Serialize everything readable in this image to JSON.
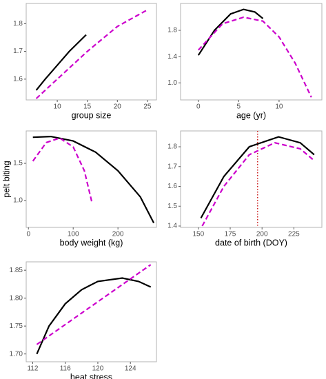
{
  "chart_data": [
    {
      "type": "line",
      "xlabel": "group size",
      "xlim": [
        4.83,
        26.5
      ],
      "ylim": [
        1.525,
        1.873
      ],
      "xticks": [
        10,
        15,
        20,
        25
      ],
      "yticks": [
        1.6,
        1.7,
        1.8
      ],
      "series": [
        {
          "color": "#000000",
          "dash": false,
          "x": [
            6.5,
            8,
            10,
            12,
            14.8
          ],
          "values": [
            1.56,
            1.6,
            1.65,
            1.7,
            1.76
          ]
        },
        {
          "color": "#cc00cc",
          "dash": true,
          "x": [
            6.5,
            10,
            15,
            20,
            25
          ],
          "values": [
            1.53,
            1.6,
            1.7,
            1.79,
            1.85
          ]
        }
      ]
    },
    {
      "type": "line",
      "xlabel": "age (yr)",
      "xlim": [
        -2.2,
        15.3
      ],
      "ylim": [
        0.74,
        2.21
      ],
      "xticks": [
        0,
        5,
        10
      ],
      "yticks": [
        {
          "value": 1.0,
          "label": "1.0"
        },
        1.4,
        1.8
      ],
      "series": [
        {
          "color": "#000000",
          "dash": false,
          "x": [
            0,
            2,
            4,
            5.6,
            7,
            8
          ],
          "values": [
            1.42,
            1.8,
            2.05,
            2.12,
            2.08,
            1.98
          ]
        },
        {
          "color": "#cc00cc",
          "dash": true,
          "x": [
            0,
            3,
            5.6,
            8,
            10,
            12,
            14
          ],
          "values": [
            1.5,
            1.9,
            2.0,
            1.94,
            1.7,
            1.3,
            0.78
          ]
        }
      ]
    },
    {
      "type": "line",
      "xlabel": "body weight (kg)",
      "ylabel": "pelt biting",
      "xlim": [
        -5,
        286
      ],
      "ylim": [
        0.64,
        1.935
      ],
      "xticks": [
        0,
        100,
        200
      ],
      "yticks": [
        {
          "value": 1.0,
          "label": "1.0"
        },
        1.5
      ],
      "series": [
        {
          "color": "#000000",
          "dash": false,
          "x": [
            10,
            50,
            100,
            150,
            200,
            250,
            280
          ],
          "values": [
            1.85,
            1.86,
            1.8,
            1.65,
            1.4,
            1.05,
            0.7
          ]
        },
        {
          "color": "#cc00cc",
          "dash": true,
          "x": [
            10,
            40,
            70,
            100,
            125,
            142
          ],
          "values": [
            1.53,
            1.78,
            1.84,
            1.72,
            1.4,
            0.97
          ]
        }
      ]
    },
    {
      "type": "line",
      "xlabel": "date of birth (DOY)",
      "xlim": [
        136,
        247
      ],
      "ylim": [
        1.393,
        1.88
      ],
      "xticks": [
        150,
        175,
        200,
        225
      ],
      "yticks": [
        1.4,
        1.5,
        1.6,
        1.7,
        1.8
      ],
      "vline": {
        "x": 196.5,
        "color": "#cc2222"
      },
      "series": [
        {
          "color": "#000000",
          "dash": false,
          "x": [
            152,
            170,
            190,
            213,
            230,
            241
          ],
          "values": [
            1.44,
            1.65,
            1.8,
            1.85,
            1.82,
            1.76
          ]
        },
        {
          "color": "#cc00cc",
          "dash": true,
          "x": [
            153,
            170,
            190,
            210,
            230,
            241
          ],
          "values": [
            1.4,
            1.6,
            1.76,
            1.82,
            1.79,
            1.73
          ]
        }
      ]
    },
    {
      "type": "line",
      "xlabel": "heat stress",
      "xlim": [
        111.2,
        127.2
      ],
      "ylim": [
        1.686,
        1.865
      ],
      "xticks": [
        112,
        116,
        120,
        124
      ],
      "yticks": [
        {
          "value": 1.7,
          "label": "1.70"
        },
        1.75,
        {
          "value": 1.8,
          "label": "1.80"
        },
        1.85
      ],
      "series": [
        {
          "color": "#000000",
          "dash": false,
          "x": [
            112.5,
            114,
            116,
            118,
            120,
            123,
            125,
            126.5
          ],
          "values": [
            1.7,
            1.75,
            1.79,
            1.815,
            1.83,
            1.836,
            1.83,
            1.82
          ]
        },
        {
          "color": "#cc00cc",
          "dash": true,
          "x": [
            112.5,
            126.5
          ],
          "values": [
            1.717,
            1.86
          ]
        }
      ]
    }
  ]
}
